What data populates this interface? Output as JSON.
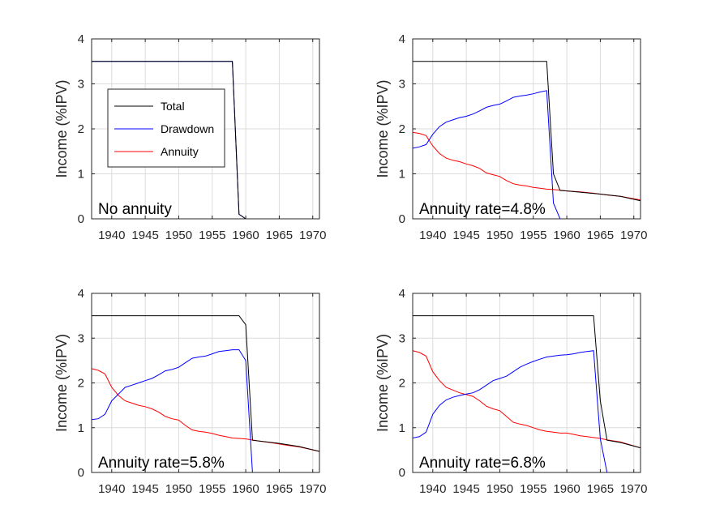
{
  "chart_data": [
    {
      "type": "line",
      "title": "",
      "xlabel": "",
      "ylabel": "Income (%IPV)",
      "xlim": [
        1937,
        1971
      ],
      "ylim": [
        0,
        4
      ],
      "xticks": [
        1940,
        1945,
        1950,
        1955,
        1960,
        1965,
        1970
      ],
      "yticks": [
        0,
        1,
        2,
        3,
        4
      ],
      "grid": true,
      "annotation": "No annuity",
      "legend": {
        "position": "left-center",
        "entries": [
          "Total",
          "Drawdown",
          "Annuity"
        ]
      },
      "series": [
        {
          "name": "Total",
          "color": "#000000",
          "x": [
            1937,
            1958,
            1959,
            1960,
            1971
          ],
          "y": [
            3.5,
            3.5,
            0.1,
            0.0,
            0.0
          ]
        },
        {
          "name": "Drawdown",
          "color": "#0000ff",
          "x": [
            1937,
            1958,
            1959,
            1960,
            1971
          ],
          "y": [
            3.5,
            3.5,
            0.1,
            0.0,
            0.0
          ]
        },
        {
          "name": "Annuity",
          "color": "#ff0000",
          "x": [
            1937,
            1971
          ],
          "y": [
            0.0,
            0.0
          ]
        }
      ]
    },
    {
      "type": "line",
      "title": "",
      "xlabel": "",
      "ylabel": "Income (%IPV)",
      "xlim": [
        1937,
        1971
      ],
      "ylim": [
        0,
        4
      ],
      "xticks": [
        1940,
        1945,
        1950,
        1955,
        1960,
        1965,
        1970
      ],
      "yticks": [
        0,
        1,
        2,
        3,
        4
      ],
      "grid": true,
      "annotation": "Annuity rate=4.8%",
      "series": [
        {
          "name": "Total",
          "color": "#000000",
          "x": [
            1937,
            1957,
            1958,
            1959,
            1960,
            1965,
            1968,
            1971
          ],
          "y": [
            3.5,
            3.5,
            1.0,
            0.63,
            0.62,
            0.55,
            0.5,
            0.4
          ]
        },
        {
          "name": "Drawdown",
          "color": "#0000ff",
          "x": [
            1937,
            1938,
            1939,
            1940,
            1941,
            1942,
            1943,
            1944,
            1945,
            1946,
            1947,
            1948,
            1949,
            1950,
            1951,
            1952,
            1953,
            1954,
            1955,
            1956,
            1957,
            1958,
            1959,
            1960,
            1971
          ],
          "y": [
            1.57,
            1.6,
            1.65,
            1.88,
            2.05,
            2.15,
            2.2,
            2.25,
            2.28,
            2.33,
            2.4,
            2.48,
            2.52,
            2.55,
            2.62,
            2.7,
            2.73,
            2.75,
            2.78,
            2.82,
            2.85,
            0.35,
            0.0,
            0.0,
            0.0
          ]
        },
        {
          "name": "Annuity",
          "color": "#ff0000",
          "x": [
            1937,
            1938,
            1939,
            1940,
            1941,
            1942,
            1943,
            1944,
            1945,
            1946,
            1947,
            1948,
            1949,
            1950,
            1951,
            1952,
            1953,
            1954,
            1955,
            1956,
            1957,
            1958,
            1960,
            1962,
            1964,
            1966,
            1968,
            1971
          ],
          "y": [
            1.92,
            1.9,
            1.85,
            1.62,
            1.45,
            1.35,
            1.3,
            1.27,
            1.22,
            1.18,
            1.12,
            1.02,
            0.98,
            0.94,
            0.85,
            0.78,
            0.75,
            0.73,
            0.7,
            0.68,
            0.66,
            0.65,
            0.62,
            0.6,
            0.57,
            0.53,
            0.5,
            0.42
          ]
        }
      ]
    },
    {
      "type": "line",
      "title": "",
      "xlabel": "",
      "ylabel": "Income (%IPV)",
      "xlim": [
        1937,
        1971
      ],
      "ylim": [
        0,
        4
      ],
      "xticks": [
        1940,
        1945,
        1950,
        1955,
        1960,
        1965,
        1970
      ],
      "yticks": [
        0,
        1,
        2,
        3,
        4
      ],
      "grid": true,
      "annotation": "Annuity rate=5.8%",
      "series": [
        {
          "name": "Total",
          "color": "#000000",
          "x": [
            1937,
            1959,
            1960,
            1961,
            1965,
            1968,
            1971
          ],
          "y": [
            3.5,
            3.5,
            3.3,
            0.72,
            0.65,
            0.58,
            0.47
          ]
        },
        {
          "name": "Drawdown",
          "color": "#0000ff",
          "x": [
            1937,
            1938,
            1939,
            1940,
            1941,
            1942,
            1943,
            1944,
            1945,
            1946,
            1947,
            1948,
            1949,
            1950,
            1951,
            1952,
            1953,
            1954,
            1955,
            1956,
            1957,
            1958,
            1959,
            1960,
            1961,
            1971
          ],
          "y": [
            1.18,
            1.2,
            1.3,
            1.6,
            1.75,
            1.9,
            1.95,
            2.0,
            2.05,
            2.1,
            2.18,
            2.27,
            2.3,
            2.35,
            2.45,
            2.55,
            2.58,
            2.6,
            2.65,
            2.7,
            2.72,
            2.74,
            2.74,
            2.5,
            0.0,
            0.0
          ]
        },
        {
          "name": "Annuity",
          "color": "#ff0000",
          "x": [
            1937,
            1938,
            1939,
            1940,
            1941,
            1942,
            1943,
            1944,
            1945,
            1946,
            1947,
            1948,
            1949,
            1950,
            1951,
            1952,
            1953,
            1954,
            1955,
            1956,
            1957,
            1958,
            1959,
            1960,
            1962,
            1964,
            1966,
            1968,
            1971
          ],
          "y": [
            2.32,
            2.28,
            2.2,
            1.9,
            1.72,
            1.6,
            1.55,
            1.5,
            1.47,
            1.42,
            1.35,
            1.25,
            1.2,
            1.17,
            1.05,
            0.95,
            0.92,
            0.9,
            0.87,
            0.83,
            0.8,
            0.77,
            0.76,
            0.75,
            0.7,
            0.66,
            0.61,
            0.57,
            0.47
          ]
        }
      ]
    },
    {
      "type": "line",
      "title": "",
      "xlabel": "",
      "ylabel": "Income (%IPV)",
      "xlim": [
        1937,
        1971
      ],
      "ylim": [
        0,
        4
      ],
      "xticks": [
        1940,
        1945,
        1950,
        1955,
        1960,
        1965,
        1970
      ],
      "yticks": [
        0,
        1,
        2,
        3,
        4
      ],
      "grid": true,
      "annotation": "Annuity rate=6.8%",
      "series": [
        {
          "name": "Total",
          "color": "#000000",
          "x": [
            1937,
            1964,
            1965,
            1966,
            1968,
            1971
          ],
          "y": [
            3.5,
            3.5,
            1.6,
            0.72,
            0.67,
            0.55
          ]
        },
        {
          "name": "Drawdown",
          "color": "#0000ff",
          "x": [
            1937,
            1938,
            1939,
            1940,
            1941,
            1942,
            1943,
            1944,
            1945,
            1946,
            1947,
            1948,
            1949,
            1950,
            1951,
            1952,
            1953,
            1954,
            1955,
            1956,
            1957,
            1958,
            1959,
            1960,
            1961,
            1962,
            1963,
            1964,
            1965,
            1966,
            1971
          ],
          "y": [
            0.77,
            0.8,
            0.9,
            1.3,
            1.5,
            1.62,
            1.68,
            1.72,
            1.75,
            1.78,
            1.85,
            1.95,
            2.05,
            2.1,
            2.15,
            2.25,
            2.35,
            2.42,
            2.48,
            2.53,
            2.58,
            2.6,
            2.62,
            2.63,
            2.65,
            2.68,
            2.7,
            2.72,
            0.75,
            0.0,
            0.0
          ]
        },
        {
          "name": "Annuity",
          "color": "#ff0000",
          "x": [
            1937,
            1938,
            1939,
            1940,
            1941,
            1942,
            1943,
            1944,
            1945,
            1946,
            1947,
            1948,
            1949,
            1950,
            1951,
            1952,
            1953,
            1954,
            1955,
            1956,
            1957,
            1958,
            1959,
            1960,
            1961,
            1962,
            1963,
            1964,
            1965,
            1966,
            1968,
            1971
          ],
          "y": [
            2.72,
            2.68,
            2.6,
            2.25,
            2.05,
            1.9,
            1.84,
            1.78,
            1.74,
            1.7,
            1.6,
            1.48,
            1.42,
            1.38,
            1.25,
            1.12,
            1.08,
            1.05,
            1.0,
            0.95,
            0.92,
            0.9,
            0.88,
            0.88,
            0.85,
            0.82,
            0.8,
            0.78,
            0.76,
            0.73,
            0.68,
            0.55
          ]
        }
      ]
    }
  ]
}
